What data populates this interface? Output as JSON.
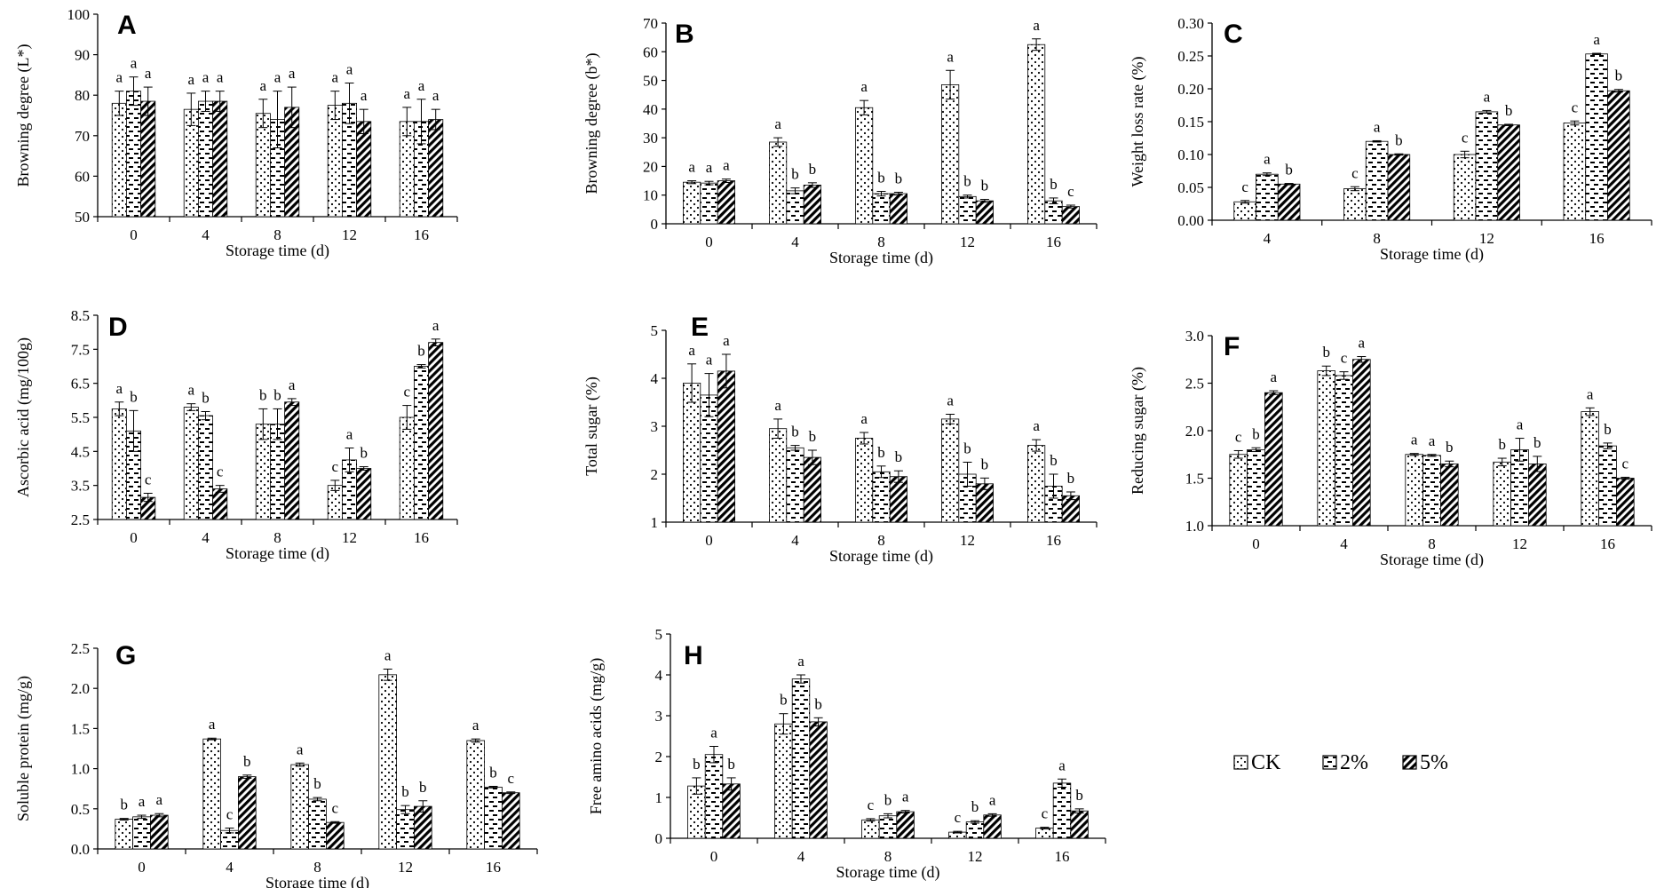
{
  "colors": {
    "ink": "#000000",
    "background": "#ffffff"
  },
  "legend": {
    "items": [
      {
        "label": "CK",
        "pattern": "dots"
      },
      {
        "label": "2%",
        "pattern": "dashes"
      },
      {
        "label": "5%",
        "pattern": "diagonal"
      }
    ]
  },
  "chart_data": [
    {
      "panel": "A",
      "type": "bar",
      "xlabel": "Storage time (d)",
      "ylabel": "Browning degree (L*)",
      "ylim": [
        50,
        100
      ],
      "yticks": [
        50,
        60,
        70,
        80,
        90,
        100
      ],
      "tick_decimals": 0,
      "categories": [
        "0",
        "4",
        "8",
        "12",
        "16"
      ],
      "series": [
        {
          "name": "CK",
          "values": [
            78,
            76.5,
            75.5,
            77.5,
            73.5
          ],
          "errors": [
            3,
            4,
            3.5,
            3.5,
            3.5
          ],
          "labels": [
            "a",
            "a",
            "a",
            "a",
            "a"
          ]
        },
        {
          "name": "2%",
          "values": [
            81,
            78.5,
            74,
            78,
            73.5
          ],
          "errors": [
            3.5,
            2.5,
            7,
            5,
            5.5
          ],
          "labels": [
            "a",
            "a",
            "a",
            "a",
            "a"
          ]
        },
        {
          "name": "5%",
          "values": [
            78.5,
            78.5,
            77,
            73.5,
            74
          ],
          "errors": [
            3.5,
            2.5,
            5,
            3,
            2.5
          ],
          "labels": [
            "a",
            "a",
            "a",
            "a",
            "a"
          ]
        }
      ]
    },
    {
      "panel": "B",
      "type": "bar",
      "xlabel": "Storage time (d)",
      "ylabel": "Browning degree (b*)",
      "ylim": [
        0,
        70
      ],
      "yticks": [
        0,
        10,
        20,
        30,
        40,
        50,
        60,
        70
      ],
      "tick_decimals": 0,
      "categories": [
        "0",
        "4",
        "8",
        "12",
        "16"
      ],
      "series": [
        {
          "name": "CK",
          "values": [
            14.5,
            28.5,
            40.5,
            48.5,
            62.5
          ],
          "errors": [
            0.5,
            1.5,
            2.5,
            5,
            2
          ],
          "labels": [
            "a",
            "a",
            "a",
            "a",
            "a"
          ]
        },
        {
          "name": "2%",
          "values": [
            14.2,
            11.5,
            10.5,
            9.5,
            8
          ],
          "errors": [
            0.6,
            1,
            0.8,
            0.5,
            1
          ],
          "labels": [
            "a",
            "b",
            "b",
            "b",
            "b"
          ]
        },
        {
          "name": "5%",
          "values": [
            15,
            13.5,
            10.5,
            8,
            6
          ],
          "errors": [
            0.6,
            0.8,
            0.5,
            0.5,
            0.5
          ],
          "labels": [
            "a",
            "b",
            "b",
            "b",
            "c"
          ]
        }
      ]
    },
    {
      "panel": "C",
      "type": "bar",
      "xlabel": "Storage time (d)",
      "ylabel": "Weight loss rate (%)",
      "ylim": [
        0,
        0.3
      ],
      "yticks": [
        0,
        0.05,
        0.1,
        0.15,
        0.2,
        0.25,
        0.3
      ],
      "tick_decimals": 2,
      "categories": [
        "4",
        "8",
        "12",
        "16"
      ],
      "series": [
        {
          "name": "CK",
          "values": [
            0.028,
            0.048,
            0.1,
            0.148
          ],
          "errors": [
            0.002,
            0.003,
            0.005,
            0.003
          ],
          "labels": [
            "c",
            "c",
            "c",
            "c"
          ]
        },
        {
          "name": "2%",
          "values": [
            0.07,
            0.12,
            0.165,
            0.253
          ],
          "errors": [
            0.002,
            0.001,
            0.002,
            0.001
          ],
          "labels": [
            "a",
            "a",
            "a",
            "a"
          ]
        },
        {
          "name": "5%",
          "values": [
            0.055,
            0.1,
            0.145,
            0.197
          ],
          "errors": [
            0.001,
            0.001,
            0.001,
            0.002
          ],
          "labels": [
            "b",
            "b",
            "b",
            "b"
          ]
        }
      ]
    },
    {
      "panel": "D",
      "type": "bar",
      "xlabel": "Storage time (d)",
      "ylabel": "Ascorbic acid (mg/100g)",
      "ylim": [
        2.5,
        8.5
      ],
      "yticks": [
        2.5,
        3.5,
        4.5,
        5.5,
        6.5,
        7.5,
        8.5
      ],
      "tick_decimals": 1,
      "categories": [
        "0",
        "4",
        "8",
        "12",
        "16"
      ],
      "series": [
        {
          "name": "CK",
          "values": [
            5.75,
            5.8,
            5.3,
            3.5,
            5.5
          ],
          "errors": [
            0.2,
            0.1,
            0.45,
            0.15,
            0.35
          ],
          "labels": [
            "a",
            "a",
            "b",
            "c",
            "c"
          ]
        },
        {
          "name": "2%",
          "values": [
            5.1,
            5.55,
            5.3,
            4.25,
            7.0
          ],
          "errors": [
            0.6,
            0.12,
            0.45,
            0.35,
            0.05
          ],
          "labels": [
            "b",
            "b",
            "b",
            "a",
            "b"
          ]
        },
        {
          "name": "5%",
          "values": [
            3.15,
            3.4,
            5.95,
            4.0,
            7.7
          ],
          "errors": [
            0.12,
            0.1,
            0.1,
            0.05,
            0.1
          ],
          "labels": [
            "c",
            "c",
            "a",
            "b",
            "a"
          ]
        }
      ]
    },
    {
      "panel": "E",
      "type": "bar",
      "xlabel": "Storage time (d)",
      "ylabel": "Total sugar (%)",
      "ylim": [
        1,
        5
      ],
      "yticks": [
        1,
        2,
        3,
        4,
        5
      ],
      "tick_decimals": 0,
      "categories": [
        "0",
        "4",
        "8",
        "12",
        "16"
      ],
      "series": [
        {
          "name": "CK",
          "values": [
            3.9,
            2.95,
            2.75,
            3.15,
            2.6
          ],
          "errors": [
            0.4,
            0.2,
            0.12,
            0.1,
            0.12
          ],
          "labels": [
            "a",
            "a",
            "a",
            "a",
            "a"
          ]
        },
        {
          "name": "2%",
          "values": [
            3.65,
            2.55,
            2.05,
            2.0,
            1.75
          ],
          "errors": [
            0.45,
            0.05,
            0.12,
            0.25,
            0.25
          ],
          "labels": [
            "a",
            "b",
            "b",
            "b",
            "b"
          ]
        },
        {
          "name": "5%",
          "values": [
            4.15,
            2.35,
            1.95,
            1.8,
            1.55
          ],
          "errors": [
            0.35,
            0.15,
            0.12,
            0.12,
            0.08
          ],
          "labels": [
            "a",
            "b",
            "b",
            "b",
            "b"
          ]
        }
      ]
    },
    {
      "panel": "F",
      "type": "bar",
      "xlabel": "Storage time (d)",
      "ylabel": "Reducing sugar (%)",
      "ylim": [
        1.0,
        3.0
      ],
      "yticks": [
        1.0,
        1.5,
        2.0,
        2.5,
        3.0
      ],
      "tick_decimals": 1,
      "categories": [
        "0",
        "4",
        "8",
        "12",
        "16"
      ],
      "series": [
        {
          "name": "CK",
          "values": [
            1.75,
            2.63,
            1.75,
            1.67,
            2.2
          ],
          "errors": [
            0.04,
            0.05,
            0.01,
            0.04,
            0.04
          ],
          "labels": [
            "c",
            "b",
            "a",
            "b",
            "a"
          ]
        },
        {
          "name": "2%",
          "values": [
            1.8,
            2.58,
            1.74,
            1.8,
            1.84
          ],
          "errors": [
            0.02,
            0.04,
            0.01,
            0.12,
            0.03
          ],
          "labels": [
            "b",
            "c",
            "a",
            "a",
            "b"
          ]
        },
        {
          "name": "5%",
          "values": [
            2.4,
            2.75,
            1.65,
            1.65,
            1.5
          ],
          "errors": [
            0.02,
            0.03,
            0.03,
            0.08,
            0.01
          ],
          "labels": [
            "a",
            "a",
            "b",
            "b",
            "c"
          ]
        }
      ]
    },
    {
      "panel": "G",
      "type": "bar",
      "xlabel": "Storage time (d)",
      "ylabel": "Soluble protein (mg/g)",
      "ylim": [
        0,
        2.5
      ],
      "yticks": [
        0.0,
        0.5,
        1.0,
        1.5,
        2.0,
        2.5
      ],
      "tick_decimals": 1,
      "categories": [
        "0",
        "4",
        "8",
        "12",
        "16"
      ],
      "series": [
        {
          "name": "CK",
          "values": [
            0.37,
            1.37,
            1.05,
            2.17,
            1.35
          ],
          "errors": [
            0.01,
            0.01,
            0.02,
            0.07,
            0.02
          ],
          "labels": [
            "b",
            "a",
            "a",
            "a",
            "a"
          ]
        },
        {
          "name": "2%",
          "values": [
            0.4,
            0.23,
            0.62,
            0.49,
            0.77
          ],
          "errors": [
            0.02,
            0.03,
            0.02,
            0.05,
            0.01
          ],
          "labels": [
            "a",
            "c",
            "b",
            "b",
            "b"
          ]
        },
        {
          "name": "5%",
          "values": [
            0.42,
            0.9,
            0.33,
            0.53,
            0.7
          ],
          "errors": [
            0.02,
            0.02,
            0.01,
            0.07,
            0.01
          ],
          "labels": [
            "a",
            "b",
            "c",
            "b",
            "c"
          ]
        }
      ]
    },
    {
      "panel": "H",
      "type": "bar",
      "xlabel": "Storage time (d)",
      "ylabel": "Free amino acids (mg/g)",
      "ylim": [
        0,
        5
      ],
      "yticks": [
        0,
        1,
        2,
        3,
        4,
        5
      ],
      "tick_decimals": 0,
      "categories": [
        "0",
        "4",
        "8",
        "12",
        "16"
      ],
      "series": [
        {
          "name": "CK",
          "values": [
            1.28,
            2.8,
            0.45,
            0.15,
            0.25
          ],
          "errors": [
            0.2,
            0.25,
            0.03,
            0.02,
            0.02
          ],
          "labels": [
            "b",
            "b",
            "c",
            "c",
            "c"
          ]
        },
        {
          "name": "2%",
          "values": [
            2.05,
            3.9,
            0.55,
            0.4,
            1.35
          ],
          "errors": [
            0.2,
            0.1,
            0.05,
            0.03,
            0.1
          ],
          "labels": [
            "a",
            "a",
            "b",
            "b",
            "a"
          ]
        },
        {
          "name": "5%",
          "values": [
            1.33,
            2.85,
            0.65,
            0.57,
            0.67
          ],
          "errors": [
            0.15,
            0.1,
            0.03,
            0.03,
            0.05
          ],
          "labels": [
            "b",
            "b",
            "a",
            "a",
            "b"
          ]
        }
      ]
    }
  ]
}
